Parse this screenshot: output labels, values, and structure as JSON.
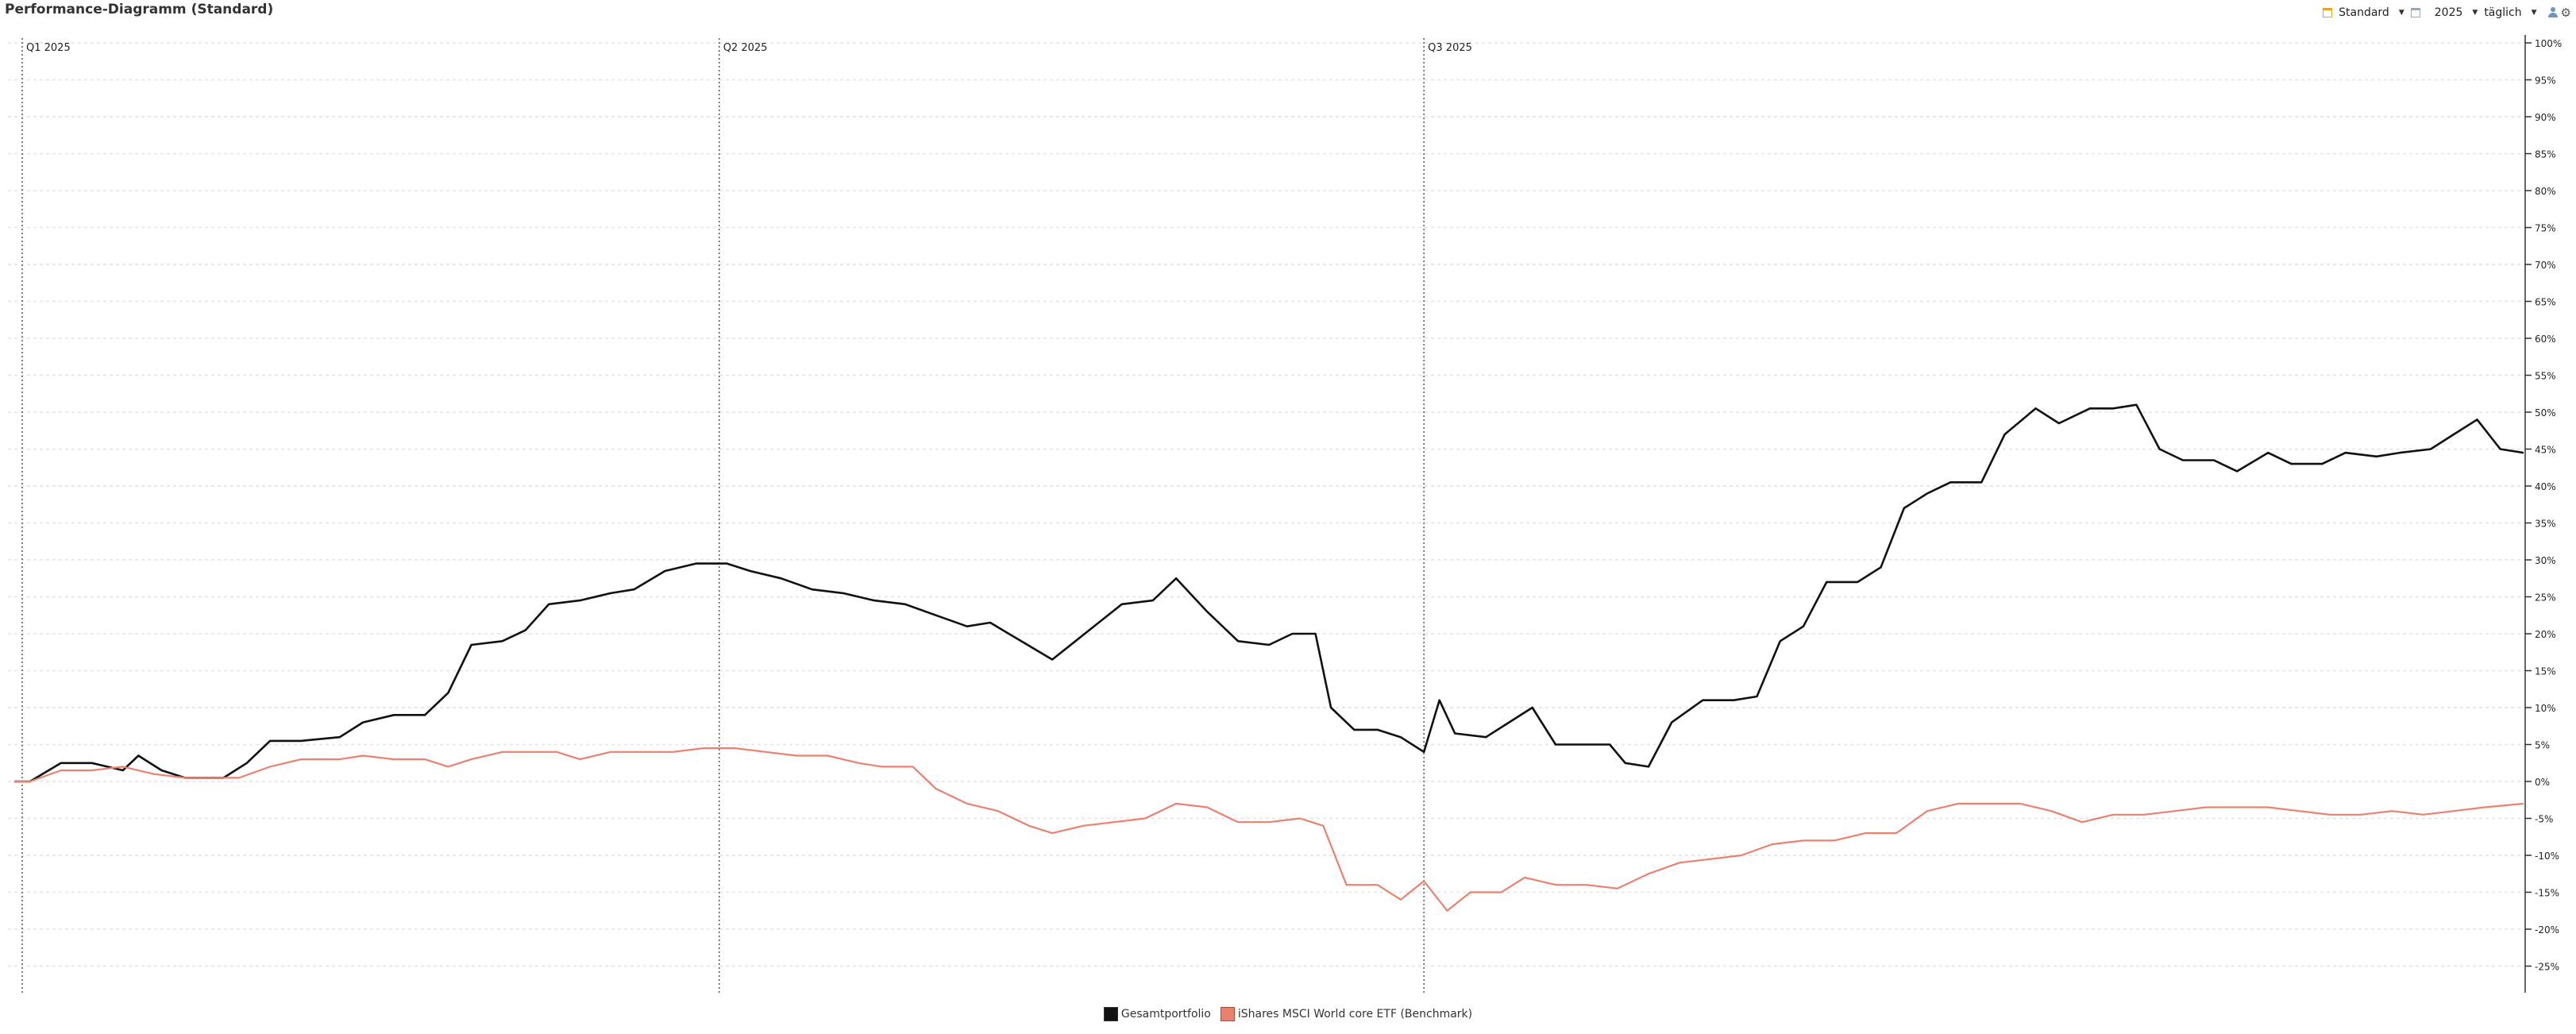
{
  "header": {
    "title": "Performance-Diagramm (Standard)",
    "preset_label": "Standard",
    "year_label": "2025",
    "interval_label": "täglich"
  },
  "colors": {
    "portfolio": "#111111",
    "benchmark": "#e8826f",
    "grid": "#e2e2e2",
    "axis": "#333333"
  },
  "chart_data": {
    "type": "line",
    "title": "Performance-Diagramm (Standard)",
    "x_range": [
      "2025-01-01",
      "2025-11-20"
    ],
    "ylim": [
      -28,
      100
    ],
    "y_unit": "%",
    "y_ticks": [
      100,
      95,
      90,
      85,
      80,
      75,
      70,
      65,
      60,
      55,
      50,
      45,
      40,
      35,
      30,
      25,
      20,
      15,
      10,
      5,
      0,
      -5,
      -10,
      -15,
      -20,
      -25
    ],
    "y_tick_labels": [
      "100%",
      "95%",
      "90%",
      "85%",
      "80%",
      "75%",
      "70%",
      "65%",
      "60%",
      "55%",
      "50%",
      "45%",
      "40%",
      "35%",
      "30%",
      "25%",
      "20%",
      "15%",
      "10%",
      "5%",
      "0%",
      "-5%",
      "-10%",
      "-15%",
      "-20%",
      "-25%"
    ],
    "grid": true,
    "legend_position": "bottom-center",
    "quarter_markers": [
      {
        "label": "Q1 2025",
        "date": "2025-01-01"
      },
      {
        "label": "Q2 2025",
        "date": "2025-04-01"
      },
      {
        "label": "Q3 2025",
        "date": "2025-07-01"
      }
    ],
    "series": [
      {
        "name": "Gesamtportfolio",
        "color": "#111111",
        "points": [
          [
            "2024-12-31",
            0
          ],
          [
            "2025-01-02",
            0
          ],
          [
            "2025-01-06",
            2.5
          ],
          [
            "2025-01-10",
            2.5
          ],
          [
            "2025-01-14",
            1.5
          ],
          [
            "2025-01-16",
            3.5
          ],
          [
            "2025-01-19",
            1.5
          ],
          [
            "2025-01-22",
            0.5
          ],
          [
            "2025-01-27",
            0.5
          ],
          [
            "2025-01-30",
            2.5
          ],
          [
            "2025-02-02",
            5.5
          ],
          [
            "2025-02-06",
            5.5
          ],
          [
            "2025-02-11",
            6
          ],
          [
            "2025-02-14",
            8
          ],
          [
            "2025-02-18",
            9
          ],
          [
            "2025-02-22",
            9
          ],
          [
            "2025-02-25",
            12
          ],
          [
            "2025-02-28",
            18.5
          ],
          [
            "2025-03-04",
            19
          ],
          [
            "2025-03-07",
            20.5
          ],
          [
            "2025-03-10",
            24
          ],
          [
            "2025-03-14",
            24.5
          ],
          [
            "2025-03-18",
            25.5
          ],
          [
            "2025-03-21",
            26
          ],
          [
            "2025-03-25",
            28.5
          ],
          [
            "2025-03-29",
            29.5
          ],
          [
            "2025-04-02",
            29.5
          ],
          [
            "2025-04-05",
            28.5
          ],
          [
            "2025-04-09",
            27.5
          ],
          [
            "2025-04-13",
            26
          ],
          [
            "2025-04-17",
            25.5
          ],
          [
            "2025-04-21",
            24.5
          ],
          [
            "2025-04-25",
            24
          ],
          [
            "2025-04-29",
            22.5
          ],
          [
            "2025-05-03",
            21
          ],
          [
            "2025-05-06",
            21.5
          ],
          [
            "2025-05-10",
            19
          ],
          [
            "2025-05-14",
            16.5
          ],
          [
            "2025-05-17",
            19
          ],
          [
            "2025-05-20",
            21.5
          ],
          [
            "2025-05-23",
            24
          ],
          [
            "2025-05-27",
            24.5
          ],
          [
            "2025-05-30",
            27.5
          ],
          [
            "2025-06-03",
            23
          ],
          [
            "2025-06-07",
            19
          ],
          [
            "2025-06-11",
            18.5
          ],
          [
            "2025-06-14",
            20
          ],
          [
            "2025-06-17",
            20
          ],
          [
            "2025-06-19",
            10
          ],
          [
            "2025-06-22",
            7
          ],
          [
            "2025-06-25",
            7
          ],
          [
            "2025-06-28",
            6
          ],
          [
            "2025-07-01",
            4
          ],
          [
            "2025-07-03",
            11
          ],
          [
            "2025-07-05",
            6.5
          ],
          [
            "2025-07-09",
            6
          ],
          [
            "2025-07-12",
            8
          ],
          [
            "2025-07-15",
            10
          ],
          [
            "2025-07-18",
            5
          ],
          [
            "2025-07-22",
            5
          ],
          [
            "2025-07-25",
            5
          ],
          [
            "2025-07-27",
            2.5
          ],
          [
            "2025-07-30",
            2
          ],
          [
            "2025-08-02",
            8
          ],
          [
            "2025-08-06",
            11
          ],
          [
            "2025-08-10",
            11
          ],
          [
            "2025-08-13",
            11.5
          ],
          [
            "2025-08-16",
            19
          ],
          [
            "2025-08-19",
            21
          ],
          [
            "2025-08-22",
            27
          ],
          [
            "2025-08-26",
            27
          ],
          [
            "2025-08-29",
            29
          ],
          [
            "2025-09-01",
            37
          ],
          [
            "2025-09-04",
            39
          ],
          [
            "2025-09-07",
            40.5
          ],
          [
            "2025-09-11",
            40.5
          ],
          [
            "2025-09-14",
            47
          ],
          [
            "2025-09-18",
            50.5
          ],
          [
            "2025-09-21",
            48.5
          ],
          [
            "2025-09-25",
            50.5
          ],
          [
            "2025-09-28",
            50.5
          ],
          [
            "2025-10-01",
            51
          ],
          [
            "2025-10-04",
            45
          ],
          [
            "2025-10-07",
            43.5
          ],
          [
            "2025-10-11",
            43.5
          ],
          [
            "2025-10-14",
            42
          ],
          [
            "2025-10-18",
            44.5
          ],
          [
            "2025-10-21",
            43
          ],
          [
            "2025-10-25",
            43
          ],
          [
            "2025-10-28",
            44.5
          ],
          [
            "2025-11-01",
            44
          ],
          [
            "2025-11-04",
            44.5
          ],
          [
            "2025-11-08",
            45
          ],
          [
            "2025-11-11",
            47
          ],
          [
            "2025-11-14",
            49
          ],
          [
            "2025-11-17",
            45
          ],
          [
            "2025-11-20",
            44.5
          ]
        ]
      },
      {
        "name": "iShares MSCI World core ETF  (Benchmark)",
        "color": "#e8826f",
        "points": [
          [
            "2024-12-31",
            0
          ],
          [
            "2025-01-02",
            0
          ],
          [
            "2025-01-06",
            1.5
          ],
          [
            "2025-01-10",
            1.5
          ],
          [
            "2025-01-14",
            2
          ],
          [
            "2025-01-18",
            1
          ],
          [
            "2025-01-22",
            0.5
          ],
          [
            "2025-01-26",
            0.5
          ],
          [
            "2025-01-29",
            0.5
          ],
          [
            "2025-02-02",
            2
          ],
          [
            "2025-02-06",
            3
          ],
          [
            "2025-02-11",
            3
          ],
          [
            "2025-02-14",
            3.5
          ],
          [
            "2025-02-18",
            3
          ],
          [
            "2025-02-22",
            3
          ],
          [
            "2025-02-25",
            2
          ],
          [
            "2025-02-28",
            3
          ],
          [
            "2025-03-04",
            4
          ],
          [
            "2025-03-07",
            4
          ],
          [
            "2025-03-11",
            4
          ],
          [
            "2025-03-14",
            3
          ],
          [
            "2025-03-18",
            4
          ],
          [
            "2025-03-22",
            4
          ],
          [
            "2025-03-26",
            4
          ],
          [
            "2025-03-30",
            4.5
          ],
          [
            "2025-04-03",
            4.5
          ],
          [
            "2025-04-07",
            4
          ],
          [
            "2025-04-11",
            3.5
          ],
          [
            "2025-04-15",
            3.5
          ],
          [
            "2025-04-19",
            2.5
          ],
          [
            "2025-04-22",
            2
          ],
          [
            "2025-04-26",
            2
          ],
          [
            "2025-04-29",
            -1
          ],
          [
            "2025-05-03",
            -3
          ],
          [
            "2025-05-07",
            -4
          ],
          [
            "2025-05-11",
            -6
          ],
          [
            "2025-05-14",
            -7
          ],
          [
            "2025-05-18",
            -6
          ],
          [
            "2025-05-22",
            -5.5
          ],
          [
            "2025-05-26",
            -5
          ],
          [
            "2025-05-30",
            -3
          ],
          [
            "2025-06-03",
            -3.5
          ],
          [
            "2025-06-07",
            -5.5
          ],
          [
            "2025-06-11",
            -5.5
          ],
          [
            "2025-06-15",
            -5
          ],
          [
            "2025-06-18",
            -6
          ],
          [
            "2025-06-21",
            -14
          ],
          [
            "2025-06-25",
            -14
          ],
          [
            "2025-06-28",
            -16
          ],
          [
            "2025-07-01",
            -13.5
          ],
          [
            "2025-07-04",
            -17.5
          ],
          [
            "2025-07-07",
            -15
          ],
          [
            "2025-07-11",
            -15
          ],
          [
            "2025-07-14",
            -13
          ],
          [
            "2025-07-18",
            -14
          ],
          [
            "2025-07-22",
            -14
          ],
          [
            "2025-07-26",
            -14.5
          ],
          [
            "2025-07-30",
            -12.5
          ],
          [
            "2025-08-03",
            -11
          ],
          [
            "2025-08-07",
            -10.5
          ],
          [
            "2025-08-11",
            -10
          ],
          [
            "2025-08-15",
            -8.5
          ],
          [
            "2025-08-19",
            -8
          ],
          [
            "2025-08-23",
            -8
          ],
          [
            "2025-08-27",
            -7
          ],
          [
            "2025-08-31",
            -7
          ],
          [
            "2025-09-04",
            -4
          ],
          [
            "2025-09-08",
            -3
          ],
          [
            "2025-09-12",
            -3
          ],
          [
            "2025-09-16",
            -3
          ],
          [
            "2025-09-20",
            -4
          ],
          [
            "2025-09-24",
            -5.5
          ],
          [
            "2025-09-28",
            -4.5
          ],
          [
            "2025-10-02",
            -4.5
          ],
          [
            "2025-10-06",
            -4
          ],
          [
            "2025-10-10",
            -3.5
          ],
          [
            "2025-10-14",
            -3.5
          ],
          [
            "2025-10-18",
            -3.5
          ],
          [
            "2025-10-22",
            -4
          ],
          [
            "2025-10-26",
            -4.5
          ],
          [
            "2025-10-30",
            -4.5
          ],
          [
            "2025-11-03",
            -4
          ],
          [
            "2025-11-07",
            -4.5
          ],
          [
            "2025-11-11",
            -4
          ],
          [
            "2025-11-15",
            -3.5
          ],
          [
            "2025-11-20",
            -3
          ]
        ]
      }
    ]
  }
}
